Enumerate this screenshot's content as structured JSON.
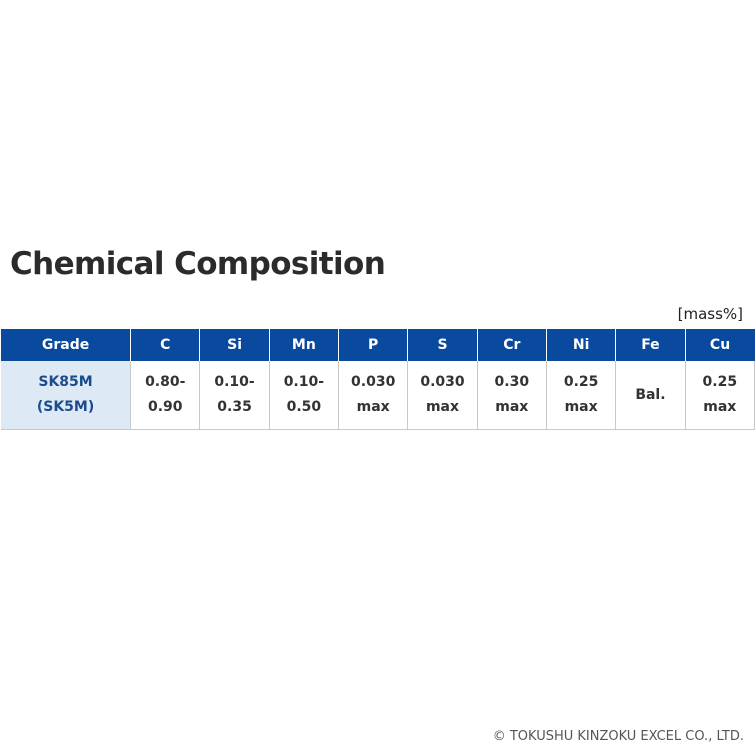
{
  "title": "Chemical Composition",
  "unit_label": "[mass%]",
  "table": {
    "headers": [
      "Grade",
      "C",
      "Si",
      "Mn",
      "P",
      "S",
      "Cr",
      "Ni",
      "Fe",
      "Cu"
    ],
    "row": {
      "grade": [
        "SK85M",
        "(SK5M)"
      ],
      "cells": [
        [
          "0.80-",
          "0.90"
        ],
        [
          "0.10-",
          "0.35"
        ],
        [
          "0.10-",
          "0.50"
        ],
        [
          "0.030",
          "max"
        ],
        [
          "0.030",
          "max"
        ],
        [
          "0.30",
          "max"
        ],
        [
          "0.25",
          "max"
        ],
        [
          "Bal."
        ],
        [
          "0.25",
          "max"
        ]
      ]
    }
  },
  "footer": "© TOKUSHU KINZOKU EXCEL CO., LTD.",
  "colors": {
    "header_bg": "#0a4a9e",
    "grade_cell_bg": "#ddeaf6",
    "grade_text": "#1b4b8c"
  }
}
